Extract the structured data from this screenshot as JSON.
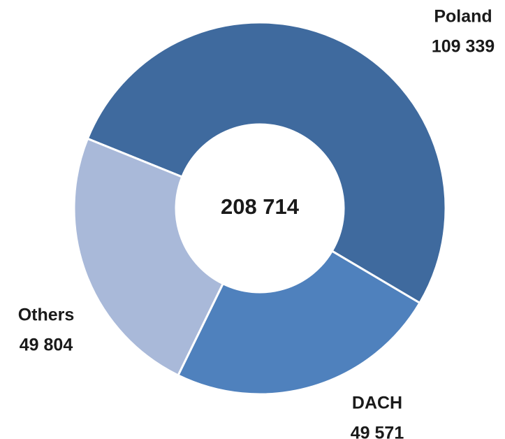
{
  "chart_data": {
    "type": "donut",
    "categories": [
      "Poland",
      "DACH",
      "Others"
    ],
    "values": [
      109339,
      49571,
      49804
    ],
    "value_labels": [
      "109 339",
      "49 571",
      "49 804"
    ],
    "colors": [
      "#3f6a9e",
      "#4f81bd",
      "#a9b9d9"
    ],
    "center_label": "208 714"
  }
}
